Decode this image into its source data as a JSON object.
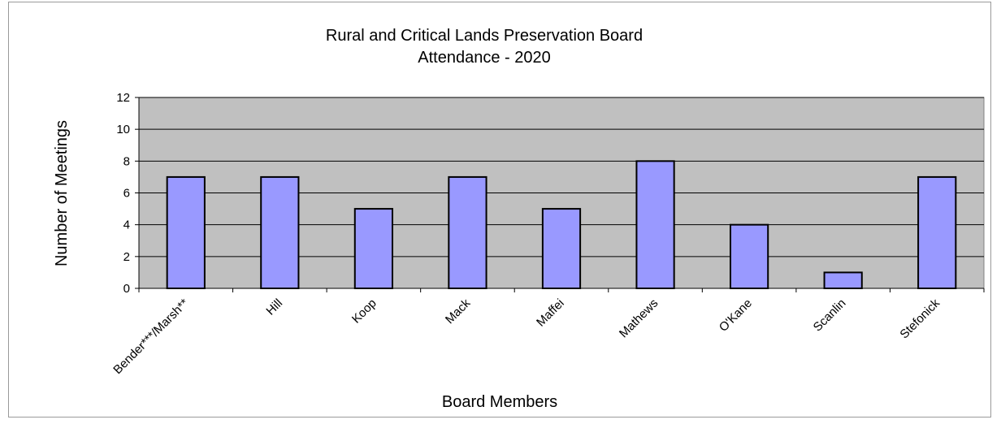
{
  "chart_data": {
    "type": "bar",
    "title": "Rural and Critical Lands Preservation Board",
    "subtitle": "Attendance - 2020",
    "xlabel": "Board Members",
    "ylabel": "Number of Meetings",
    "categories": [
      "Bender***/Marsh**",
      "Hill",
      "Koop",
      "Mack",
      "Maffei",
      "Mathews",
      "O'Kane",
      "Scanlin",
      "Stefonick"
    ],
    "values": [
      7,
      7,
      5,
      7,
      5,
      8,
      4,
      1,
      7
    ],
    "ylim": [
      0,
      12
    ],
    "yticks": [
      0,
      2,
      4,
      6,
      8,
      10,
      12
    ],
    "grid": true,
    "legend": "none",
    "bar_color": "#9999ff",
    "plot_background": "#c0c0c0"
  }
}
